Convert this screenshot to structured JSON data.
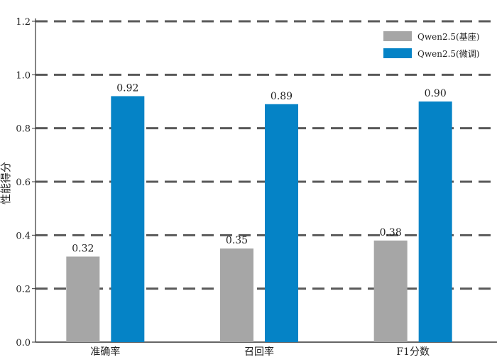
{
  "chart_data": {
    "type": "bar",
    "title": "",
    "xlabel": "",
    "ylabel": "性能得分",
    "ylim": [
      0,
      1.2
    ],
    "yticks": [
      "0.0",
      "0.2",
      "0.4",
      "0.6",
      "0.8",
      "1.0",
      "1.2"
    ],
    "grid": "horizontal dashed",
    "legend_position": "top-right",
    "categories": [
      "准确率",
      "召回率",
      "F1分数"
    ],
    "series": [
      {
        "name": "Qwen2.5(基座)",
        "color": "#a6a6a6",
        "values": [
          0.32,
          0.35,
          0.38
        ],
        "labels": [
          "0.32",
          "0.35",
          "0.38"
        ]
      },
      {
        "name": "Qwen2.5(微调)",
        "color": "#0583c6",
        "values": [
          0.92,
          0.89,
          0.9
        ],
        "labels": [
          "0.92",
          "0.89",
          "0.90"
        ]
      }
    ]
  }
}
